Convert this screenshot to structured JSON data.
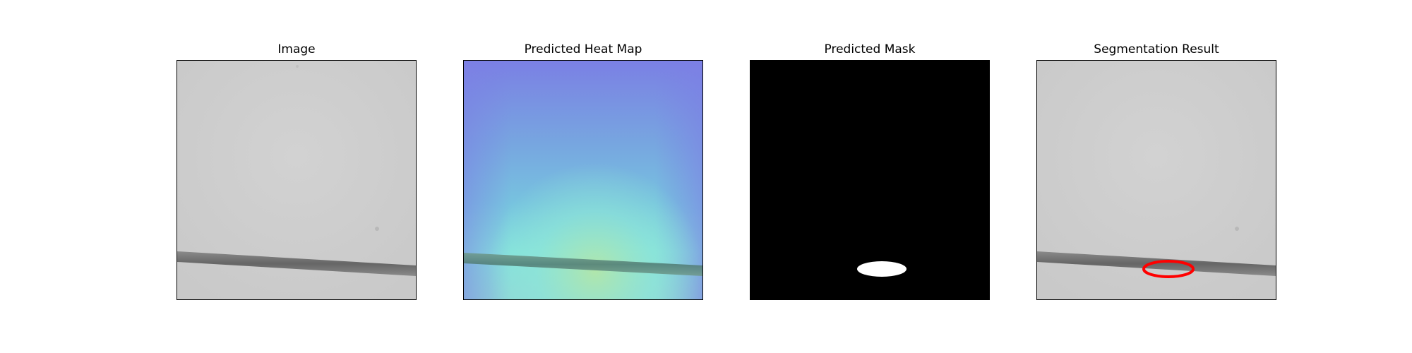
{
  "figure": {
    "panels": [
      {
        "title": "Image"
      },
      {
        "title": "Predicted Heat Map"
      },
      {
        "title": "Predicted Mask"
      },
      {
        "title": "Segmentation Result"
      }
    ]
  },
  "colors": {
    "background_gray": "#cfcfcf",
    "line_dark": "#6f6f6f",
    "heat_purple": "#7b7fe3",
    "heat_blue": "#78aee0",
    "heat_cyan": "#7fe3df",
    "heat_green": "#a6e3b3",
    "mask_black": "#000000",
    "mask_white": "#ffffff",
    "contour_red": "#ff0000"
  }
}
